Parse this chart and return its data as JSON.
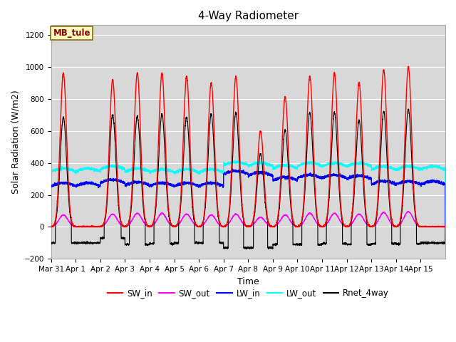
{
  "title": "4-Way Radiometer",
  "xlabel": "Time",
  "ylabel": "Solar Radiation (W/m2)",
  "ylim": [
    -200,
    1260
  ],
  "yticks": [
    -200,
    0,
    200,
    400,
    600,
    800,
    1000,
    1200
  ],
  "x_tick_labels": [
    "Mar 31",
    "Apr 1",
    "Apr 2",
    "Apr 3",
    "Apr 4",
    "Apr 5",
    "Apr 6",
    "Apr 7",
    "Apr 8",
    "Apr 9",
    "Apr 10",
    "Apr 11",
    "Apr 12",
    "Apr 13",
    "Apr 14",
    "Apr 15"
  ],
  "station_label": "MB_tule",
  "legend_entries": [
    "SW_in",
    "SW_out",
    "LW_in",
    "LW_out",
    "Rnet_4way"
  ],
  "legend_colors": [
    "#ff0000",
    "#ff00ff",
    "#0000ff",
    "#00ffff",
    "#000000"
  ],
  "plot_bg_color": "#d8d8d8",
  "fig_bg_color": "#ffffff",
  "num_days": 16,
  "sw_in_peaks": [
    960,
    0,
    920,
    960,
    960,
    940,
    900,
    940,
    600,
    810,
    940,
    960,
    900,
    980,
    1000,
    0
  ],
  "sw_out_peaks": [
    75,
    0,
    80,
    85,
    85,
    80,
    75,
    80,
    60,
    75,
    85,
    85,
    80,
    90,
    95,
    0
  ],
  "lw_in_base": [
    255,
    255,
    275,
    260,
    255,
    255,
    255,
    330,
    320,
    290,
    305,
    305,
    300,
    265,
    265,
    265
  ],
  "lw_out_base": [
    345,
    345,
    360,
    345,
    340,
    340,
    340,
    385,
    380,
    365,
    380,
    378,
    378,
    358,
    358,
    358
  ],
  "rnet_peaks": [
    685,
    0,
    700,
    690,
    705,
    685,
    705,
    715,
    455,
    605,
    715,
    715,
    665,
    720,
    735,
    0
  ],
  "rnet_night": [
    -100,
    -100,
    -70,
    -110,
    -105,
    -100,
    -100,
    -130,
    -130,
    -110,
    -110,
    -105,
    -110,
    -105,
    -105,
    -100
  ],
  "figsize": [
    6.4,
    4.8
  ],
  "dpi": 100
}
